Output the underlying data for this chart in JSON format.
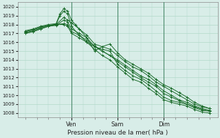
{
  "title": "",
  "xlabel": "Pression niveau de la mer( hPa )",
  "ylim": [
    1007.5,
    1020.5
  ],
  "xlim": [
    -4,
    100
  ],
  "yticks": [
    1008,
    1009,
    1010,
    1011,
    1012,
    1013,
    1014,
    1015,
    1016,
    1017,
    1018,
    1019,
    1020
  ],
  "xtick_positions": [
    24,
    48,
    72
  ],
  "xtick_labels": [
    "Ven",
    "Sam",
    "Dim"
  ],
  "bg_color": "#d8ede8",
  "grid_color": "#b0d8c8",
  "line_color": "#1a6b2a",
  "vline_color": "#4a8a6a",
  "lines": [
    [
      0,
      1017.2,
      4,
      1017.4,
      8,
      1017.7,
      12,
      1017.9,
      16,
      1018.0,
      20,
      1018.1,
      22,
      1018.0,
      24,
      1017.2,
      28,
      1016.8,
      32,
      1016.2,
      36,
      1015.6,
      40,
      1015.0,
      44,
      1014.5,
      48,
      1013.8,
      52,
      1013.2,
      56,
      1012.6,
      60,
      1012.0,
      64,
      1011.5,
      68,
      1011.0,
      72,
      1010.2,
      76,
      1009.8,
      80,
      1009.4,
      84,
      1009.0,
      88,
      1008.7,
      92,
      1008.4,
      96,
      1008.2
    ],
    [
      0,
      1017.3,
      4,
      1017.5,
      8,
      1017.8,
      12,
      1018.0,
      16,
      1018.1,
      18,
      1019.2,
      20,
      1019.8,
      22,
      1019.5,
      24,
      1018.5,
      26,
      1018.0,
      28,
      1017.5,
      32,
      1016.5,
      36,
      1015.5,
      40,
      1015.2,
      44,
      1015.0,
      48,
      1013.5,
      52,
      1012.8,
      56,
      1012.2,
      60,
      1011.8,
      64,
      1011.2,
      68,
      1010.5,
      72,
      1009.8,
      76,
      1009.4,
      80,
      1009.2,
      84,
      1009.0,
      88,
      1008.6,
      92,
      1008.3,
      96,
      1008.2
    ],
    [
      0,
      1017.1,
      4,
      1017.3,
      8,
      1017.6,
      12,
      1017.9,
      16,
      1018.0,
      18,
      1019.0,
      20,
      1019.5,
      22,
      1019.2,
      24,
      1017.8,
      28,
      1016.8,
      32,
      1016.0,
      36,
      1015.2,
      40,
      1014.5,
      44,
      1014.0,
      48,
      1013.2,
      52,
      1012.5,
      56,
      1011.8,
      60,
      1011.5,
      64,
      1010.8,
      68,
      1010.2,
      72,
      1009.5,
      76,
      1009.2,
      80,
      1009.0,
      84,
      1008.8,
      88,
      1008.4,
      92,
      1008.1,
      96,
      1008.0
    ],
    [
      0,
      1017.0,
      4,
      1017.2,
      8,
      1017.5,
      12,
      1017.8,
      16,
      1018.0,
      20,
      1018.8,
      22,
      1018.5,
      24,
      1018.2,
      28,
      1017.5,
      32,
      1016.8,
      36,
      1015.8,
      40,
      1015.5,
      44,
      1015.2,
      48,
      1014.5,
      52,
      1013.8,
      56,
      1013.2,
      60,
      1012.8,
      64,
      1012.2,
      68,
      1011.5,
      72,
      1011.0,
      76,
      1010.5,
      80,
      1010.0,
      84,
      1009.5,
      88,
      1009.0,
      92,
      1008.7,
      96,
      1008.5
    ],
    [
      0,
      1017.0,
      4,
      1017.2,
      8,
      1017.5,
      12,
      1017.8,
      16,
      1017.9,
      20,
      1018.5,
      22,
      1018.3,
      24,
      1017.5,
      28,
      1017.0,
      32,
      1016.5,
      36,
      1015.0,
      40,
      1015.5,
      44,
      1015.8,
      48,
      1014.8,
      52,
      1014.0,
      56,
      1013.5,
      60,
      1013.0,
      64,
      1012.5,
      68,
      1011.8,
      72,
      1011.2,
      76,
      1010.8,
      80,
      1010.3,
      84,
      1009.8,
      88,
      1009.2,
      92,
      1008.8,
      96,
      1008.5
    ],
    [
      0,
      1017.2,
      4,
      1017.4,
      8,
      1017.7,
      12,
      1017.9,
      16,
      1018.0,
      20,
      1018.0,
      22,
      1017.8,
      24,
      1017.0,
      28,
      1016.5,
      32,
      1016.0,
      36,
      1015.5,
      40,
      1015.0,
      44,
      1014.5,
      48,
      1014.0,
      52,
      1013.4,
      56,
      1012.8,
      60,
      1012.2,
      64,
      1011.8,
      68,
      1011.2,
      72,
      1010.5,
      76,
      1010.0,
      80,
      1009.5,
      84,
      1009.2,
      88,
      1008.8,
      92,
      1008.5,
      96,
      1008.3
    ]
  ]
}
